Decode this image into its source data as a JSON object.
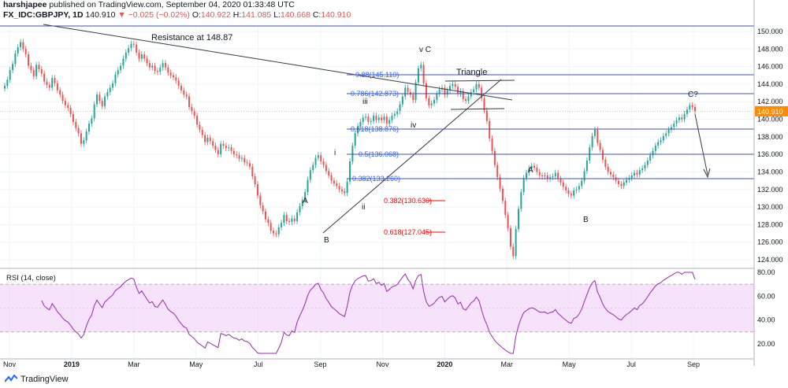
{
  "header": {
    "publisher": "harshjapee",
    "published_text": "published on TradingView.com, September 04, 2020 01:33:48 UTC",
    "symbol": "FX_IDC:GBPJPY, 1D",
    "last": "140.910",
    "change": "▼ −0.025 (−0.02%)",
    "o_label": "O:",
    "o": "140.922",
    "h_label": "H:",
    "h": "141.085",
    "l_label": "L:",
    "l": "140.668",
    "c_label": "C:",
    "c": "140.910"
  },
  "footer": {
    "brand": "TradingView"
  },
  "colors": {
    "bull": "#26a69a",
    "bear": "#ef5350",
    "fib_line": "#3f51b5",
    "fib_text": "#2962ff",
    "fib_red": "#ff0000",
    "rsi_line": "#9c27b0",
    "rsi_band": "#f3d6fb",
    "price_badge": "#ff8a00"
  },
  "chart_data": [
    {
      "type": "candlestick",
      "title": "",
      "ylim": [
        123,
        151
      ],
      "y_ticks": [
        "150.000",
        "148.000",
        "146.000",
        "144.000",
        "142.000",
        "140.000",
        "138.000",
        "136.000",
        "134.000",
        "132.000",
        "130.000",
        "128.000",
        "126.000",
        "124.000"
      ],
      "x_ticks": [
        "Nov",
        "2019",
        "Mar",
        "May",
        "Jul",
        "Sep",
        "Nov",
        "2020",
        "Mar",
        "May",
        "Jul",
        "Sep"
      ],
      "last_price_label": "140.910",
      "closes": [
        143.8,
        144.5,
        145.6,
        146.3,
        147.5,
        148.2,
        148.8,
        148.0,
        147.4,
        146.1,
        145.6,
        144.9,
        146.2,
        145.7,
        145.2,
        144.3,
        143.9,
        143.6,
        144.7,
        144.1,
        143.3,
        142.8,
        142.1,
        141.6,
        141.3,
        140.6,
        139.7,
        139.0,
        138.4,
        137.2,
        137.6,
        138.6,
        139.5,
        140.1,
        141.7,
        142.8,
        142.1,
        141.5,
        142.6,
        143.1,
        143.6,
        144.1,
        145.1,
        145.6,
        146.1,
        146.9,
        147.6,
        148.1,
        148.6,
        148.5,
        147.6,
        146.9,
        147.4,
        146.9,
        146.4,
        145.9,
        146.1,
        145.5,
        145.4,
        145.9,
        146.4,
        145.9,
        145.3,
        145.0,
        144.8,
        144.4,
        143.8,
        143.3,
        142.8,
        142.6,
        141.4,
        140.9,
        140.4,
        139.4,
        138.8,
        138.2,
        137.4,
        137.9,
        137.5,
        137.0,
        136.5,
        136.0,
        137.2,
        137.0,
        136.7,
        136.8,
        136.4,
        136.0,
        135.9,
        135.5,
        135.6,
        135.1,
        135.0,
        134.6,
        133.5,
        132.6,
        131.3,
        130.2,
        129.5,
        128.6,
        128.2,
        127.3,
        127.0,
        126.9,
        127.7,
        128.2,
        129.1,
        128.4,
        128.3,
        128.7,
        128.4,
        129.4,
        130.1,
        130.8,
        131.7,
        133.1,
        134.2,
        134.8,
        135.6,
        135.9,
        135.2,
        134.8,
        134.1,
        133.6,
        133.0,
        132.7,
        132.4,
        132.0,
        131.8,
        131.6,
        132.9,
        135.2,
        137.0,
        138.4,
        139.2,
        139.7,
        140.2,
        140.3,
        139.7,
        139.8,
        140.4,
        139.9,
        140.2,
        139.9,
        140.3,
        139.5,
        139.9,
        140.4,
        140.6,
        140.9,
        141.7,
        142.6,
        143.6,
        143.1,
        142.8,
        142.2,
        144.2,
        145.8,
        146.2,
        144.1,
        142.4,
        141.6,
        141.8,
        142.2,
        142.9,
        143.4,
        143.6,
        142.8,
        143.3,
        143.8,
        144.0,
        143.7,
        142.9,
        143.2,
        142.3,
        142.1,
        142.6,
        143.1,
        143.4,
        144.0,
        143.6,
        142.4,
        141.0,
        139.8,
        137.8,
        136.4,
        134.8,
        133.4,
        132.1,
        130.7,
        129.1,
        127.6,
        125.5,
        124.4,
        127.5,
        129.8,
        131.7,
        133.3,
        133.9,
        134.4,
        134.7,
        134.5,
        134.0,
        133.6,
        133.5,
        133.6,
        133.2,
        133.4,
        133.5,
        133.9,
        133.2,
        132.8,
        132.3,
        131.9,
        131.5,
        131.3,
        131.9,
        132.0,
        132.4,
        133.0,
        134.1,
        135.3,
        136.8,
        138.1,
        138.8,
        137.3,
        136.5,
        135.4,
        134.6,
        134.0,
        133.7,
        133.4,
        133.0,
        132.6,
        132.4,
        132.8,
        133.1,
        133.3,
        133.6,
        133.9,
        133.7,
        134.2,
        134.4,
        134.8,
        135.3,
        135.9,
        136.4,
        137.0,
        137.4,
        137.6,
        138.1,
        138.4,
        138.8,
        139.1,
        139.5,
        139.9,
        140.2,
        140.0,
        140.6,
        141.1,
        141.6,
        141.4,
        140.91
      ]
    },
    {
      "type": "line",
      "title": "RSI (14, close)",
      "ylim": [
        10,
        80
      ],
      "y_ticks": [
        "80.00",
        "60.00",
        "40.00",
        "20.00"
      ],
      "band": [
        30,
        70
      ]
    }
  ],
  "annotations": {
    "resistance": "Resistance at 148.87",
    "wave_vC": "v C",
    "triangle": "Triangle",
    "wave_iii": "iii",
    "wave_iv": "iv",
    "wave_i": "i",
    "wave_ii": "ii",
    "wave_A1": "A",
    "wave_B1": "B",
    "wave_A2": "A",
    "wave_B2": "B",
    "wave_C2": "C?",
    "fib_088": "0.88(145.110)",
    "fib_0786": "0.786(142.873)",
    "fib_0618": "0.618(138.876)",
    "fib_05": "0.5(136.068)",
    "fib_0382": "0.382(133.260)",
    "fib_r0382": "0.382(130.630)",
    "fib_r0618": "0.618(127.045)"
  }
}
